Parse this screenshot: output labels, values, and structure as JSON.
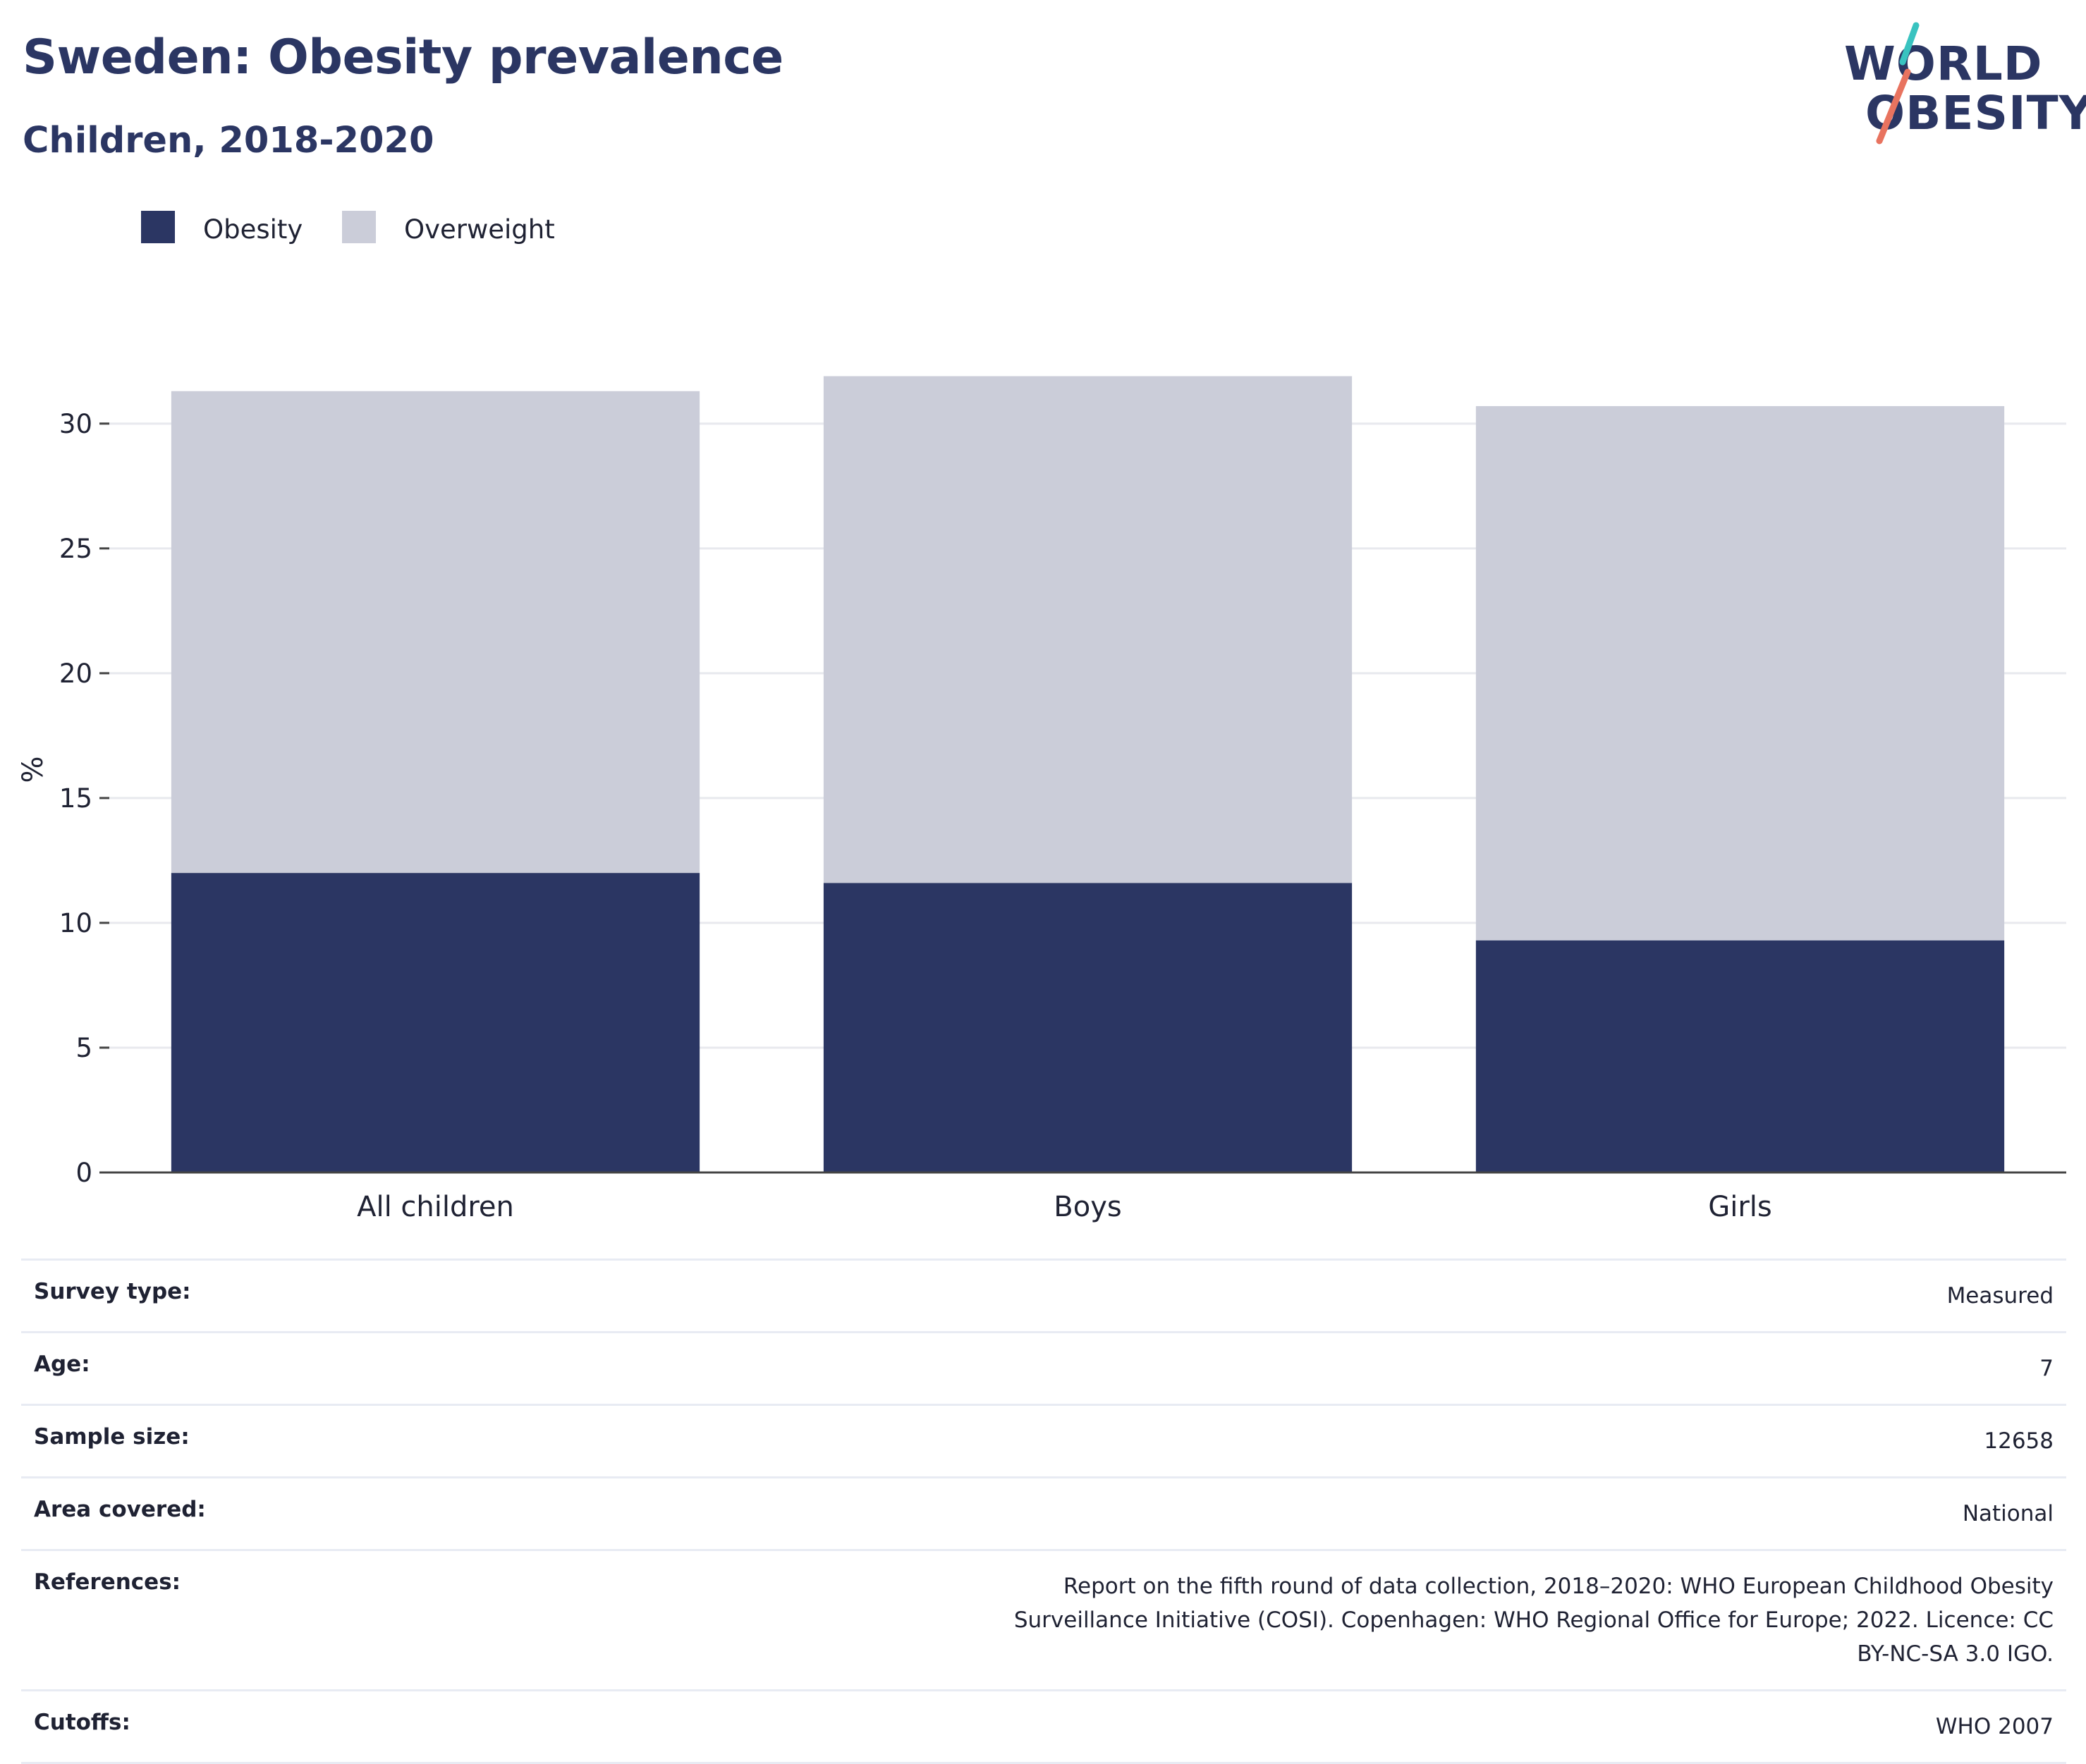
{
  "header": {
    "title": "Sweden: Obesity prevalence",
    "subtitle": "Children, 2018-2020"
  },
  "logo": {
    "line1": "WORLD",
    "line2": "OBESITY",
    "slash_colors": [
      "#39c3c0",
      "#e8735f"
    ]
  },
  "legend": [
    {
      "label": "Obesity",
      "color": "#2b3663"
    },
    {
      "label": "Overweight",
      "color": "#cbcdd9"
    }
  ],
  "chart_data": {
    "type": "bar",
    "stacked": true,
    "categories": [
      "All children",
      "Boys",
      "Girls"
    ],
    "series": [
      {
        "name": "Obesity",
        "color": "#2b3663",
        "values": [
          12.0,
          11.6,
          9.3
        ]
      },
      {
        "name": "Overweight",
        "color": "#cbcdd9",
        "values": [
          19.3,
          20.3,
          21.4
        ]
      }
    ],
    "ylabel": "%",
    "ylim": [
      0,
      32
    ],
    "yticks": [
      0,
      5,
      10,
      15,
      20,
      25,
      30
    ],
    "grid": true,
    "legend_position": "top-left"
  },
  "info": [
    {
      "key": "Survey type:",
      "value": "Measured"
    },
    {
      "key": "Age:",
      "value": "7"
    },
    {
      "key": "Sample size:",
      "value": "12658"
    },
    {
      "key": "Area covered:",
      "value": "National"
    },
    {
      "key": "References:",
      "value": "Report on the fifth round of data collection, 2018–2020: WHO European Childhood Obesity Surveillance Initiative (COSI). Copenhagen: WHO Regional Office for Europe; 2022. Licence: CC BY-NC-SA 3.0 IGO."
    },
    {
      "key": "Cutoffs:",
      "value": "WHO 2007"
    }
  ]
}
